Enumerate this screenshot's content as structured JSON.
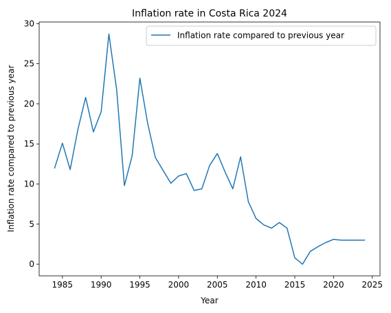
{
  "chart_data": {
    "type": "line",
    "title": "Inflation rate in Costa Rica 2024",
    "xlabel": "Year",
    "ylabel": "Inflation rate compared to previous year",
    "xlim": [
      1982,
      2026
    ],
    "ylim": [
      -1.45,
      30.2
    ],
    "xticks": [
      1985,
      1990,
      1995,
      2000,
      2005,
      2010,
      2015,
      2020,
      2025
    ],
    "yticks": [
      0,
      5,
      10,
      15,
      20,
      25,
      30
    ],
    "grid": false,
    "legend_position": "top-right",
    "series": [
      {
        "name": "Inflation rate compared to previous year",
        "color": "#1f77b4",
        "x": [
          1984,
          1985,
          1986,
          1987,
          1988,
          1989,
          1990,
          1991,
          1992,
          1993,
          1994,
          1995,
          1996,
          1997,
          1998,
          1999,
          2000,
          2001,
          2002,
          2003,
          2004,
          2005,
          2006,
          2007,
          2008,
          2009,
          2010,
          2011,
          2012,
          2013,
          2014,
          2015,
          2016,
          2017,
          2018,
          2019,
          2020,
          2021,
          2022,
          2023,
          2024
        ],
        "y": [
          12.0,
          15.1,
          11.8,
          16.8,
          20.8,
          16.5,
          19.0,
          28.7,
          21.8,
          9.8,
          13.5,
          23.2,
          17.6,
          13.3,
          11.7,
          10.1,
          11.0,
          11.3,
          9.2,
          9.4,
          12.3,
          13.8,
          11.5,
          9.4,
          13.4,
          7.8,
          5.7,
          4.9,
          4.5,
          5.2,
          4.5,
          0.8,
          0.0,
          1.6,
          2.2,
          2.7,
          3.1,
          3.0,
          3.0,
          3.0,
          3.0
        ]
      }
    ]
  }
}
